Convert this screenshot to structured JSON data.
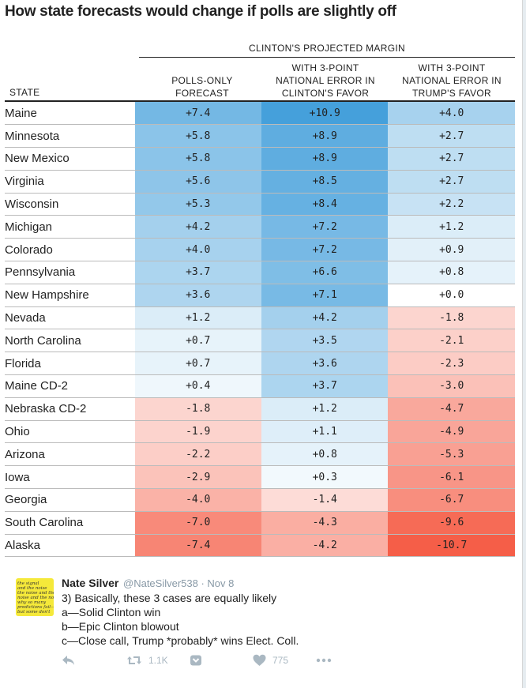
{
  "title": "How state forecasts would change if polls are slightly off",
  "group_header": "CLINTON'S PROJECTED MARGIN",
  "columns": {
    "state": "STATE",
    "polls_only": [
      "POLLS-ONLY",
      "FORECAST"
    ],
    "clinton_favor": [
      "WITH 3-POINT",
      "NATIONAL ERROR IN",
      "CLINTON'S FAVOR"
    ],
    "trump_favor": [
      "WITH 3-POINT",
      "NATIONAL ERROR IN",
      "TRUMP'S FAVOR"
    ]
  },
  "rows": [
    {
      "state": "Maine",
      "polls": "+7.4",
      "clinton": "+10.9",
      "trump": "+4.0"
    },
    {
      "state": "Minnesota",
      "polls": "+5.8",
      "clinton": "+8.9",
      "trump": "+2.7"
    },
    {
      "state": "New Mexico",
      "polls": "+5.8",
      "clinton": "+8.9",
      "trump": "+2.7"
    },
    {
      "state": "Virginia",
      "polls": "+5.6",
      "clinton": "+8.5",
      "trump": "+2.7"
    },
    {
      "state": "Wisconsin",
      "polls": "+5.3",
      "clinton": "+8.4",
      "trump": "+2.2"
    },
    {
      "state": "Michigan",
      "polls": "+4.2",
      "clinton": "+7.2",
      "trump": "+1.2"
    },
    {
      "state": "Colorado",
      "polls": "+4.0",
      "clinton": "+7.2",
      "trump": "+0.9"
    },
    {
      "state": "Pennsylvania",
      "polls": "+3.7",
      "clinton": "+6.6",
      "trump": "+0.8"
    },
    {
      "state": "New Hampshire",
      "polls": "+3.6",
      "clinton": "+7.1",
      "trump": "+0.0"
    },
    {
      "state": "Nevada",
      "polls": "+1.2",
      "clinton": "+4.2",
      "trump": "-1.8"
    },
    {
      "state": "North Carolina",
      "polls": "+0.7",
      "clinton": "+3.5",
      "trump": "-2.1"
    },
    {
      "state": "Florida",
      "polls": "+0.7",
      "clinton": "+3.6",
      "trump": "-2.3"
    },
    {
      "state": "Maine CD-2",
      "polls": "+0.4",
      "clinton": "+3.7",
      "trump": "-3.0"
    },
    {
      "state": "Nebraska CD-2",
      "polls": "-1.8",
      "clinton": "+1.2",
      "trump": "-4.7"
    },
    {
      "state": "Ohio",
      "polls": "-1.9",
      "clinton": "+1.1",
      "trump": "-4.9"
    },
    {
      "state": "Arizona",
      "polls": "-2.2",
      "clinton": "+0.8",
      "trump": "-5.3"
    },
    {
      "state": "Iowa",
      "polls": "-2.9",
      "clinton": "+0.3",
      "trump": "-6.1"
    },
    {
      "state": "Georgia",
      "polls": "-4.0",
      "clinton": "-1.4",
      "trump": "-6.7"
    },
    {
      "state": "South Carolina",
      "polls": "-7.0",
      "clinton": "-4.3",
      "trump": "-9.6"
    },
    {
      "state": "Alaska",
      "polls": "-7.4",
      "clinton": "-4.2",
      "trump": "-10.7"
    }
  ],
  "colors": {
    "dem_max": "#3a9ad9",
    "rep_max": "#f4523a",
    "neutral": "#ffffff"
  },
  "tweet": {
    "avatar_lines": [
      "the signal",
      "and the noise",
      "the noise and the",
      "noise and the noi",
      "why so many",
      "predictions fail—",
      "but some don't"
    ],
    "name": "Nate Silver",
    "handle_time": "@NateSilver538 · Nov 8",
    "lines": [
      "3) Basically, these 3 cases are equally likely",
      "a—Solid Clinton win",
      "b—Epic Clinton blowout",
      "c—Close call, Trump *probably* wins Elect. Coll."
    ],
    "retweet_count": "1.1K",
    "like_count": "775",
    "icons": [
      "reply-icon",
      "retweet-icon",
      "save-icon",
      "like-icon",
      "more-icon"
    ]
  }
}
